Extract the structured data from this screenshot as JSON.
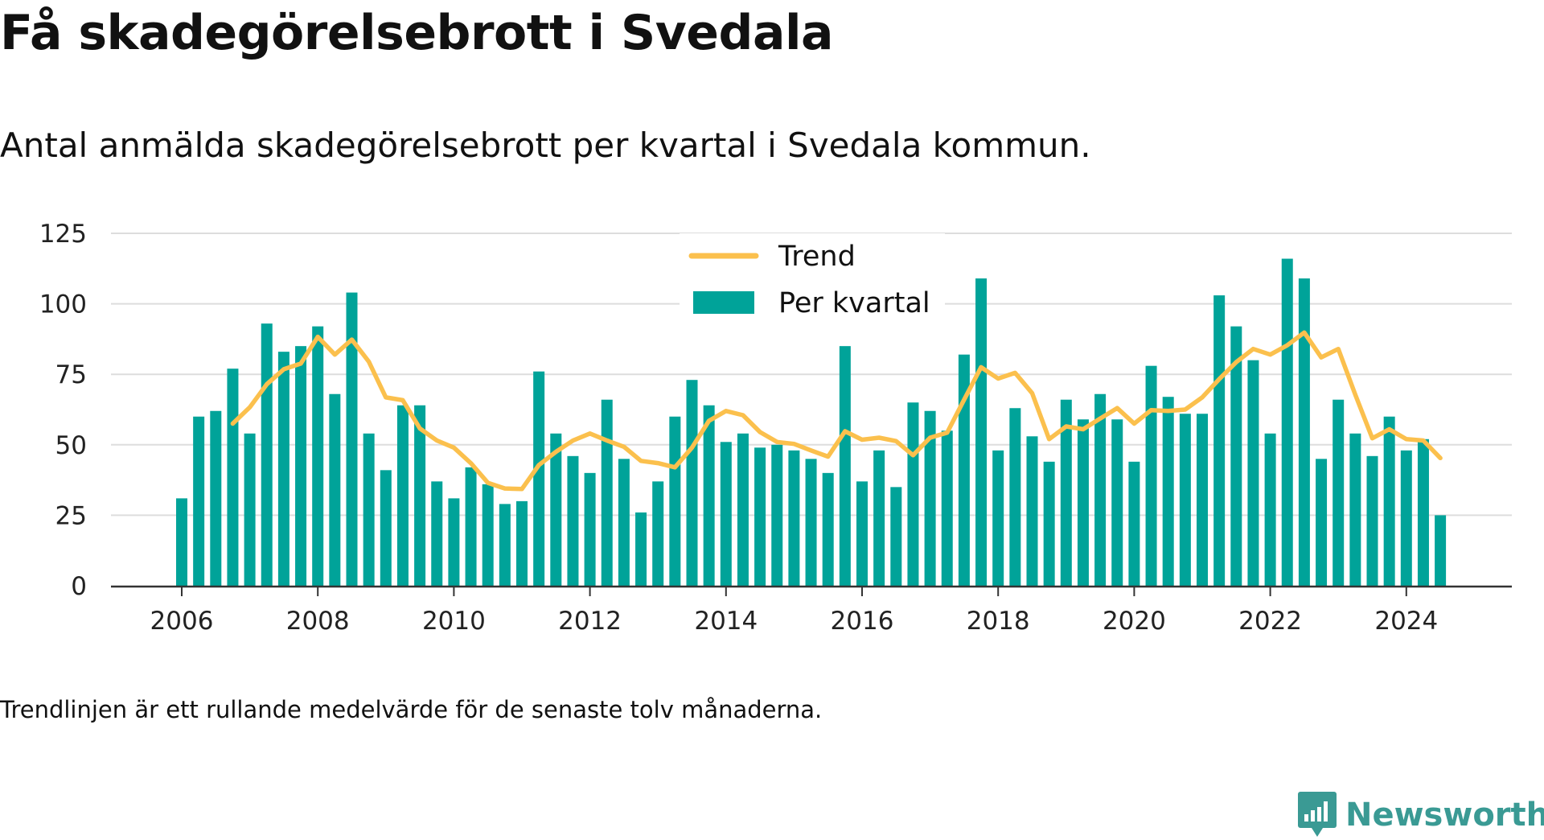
{
  "title": "Få skadegörelsebrott i Svedala",
  "subtitle": "Antal anmälda skadegörelsebrott per kvartal i Svedala kommun.",
  "footnote": "Trendlinjen är ett rullande medelvärde för de senaste tolv månaderna.",
  "brand": {
    "name": "Newsworthy",
    "icon": "newsworthy-logo-icon"
  },
  "colors": {
    "bars": "#00a399",
    "trend": "#fbc04d",
    "grid": "#dddddd",
    "axis": "#333333",
    "brand": "#3a9a94"
  },
  "chart_data": {
    "type": "bar",
    "title": "Få skadegörelsebrott i Svedala",
    "ylim": [
      0,
      125
    ],
    "yticks": [
      0,
      25,
      50,
      75,
      100,
      125
    ],
    "xticks": [
      "2006",
      "2008",
      "2010",
      "2012",
      "2014",
      "2016",
      "2018",
      "2020",
      "2022",
      "2024"
    ],
    "x_start": "2006 Q1",
    "grid": true,
    "legend": {
      "placement": "top-center",
      "entries": [
        "Trend",
        "Per kvartal"
      ]
    },
    "series": [
      {
        "name": "Per kvartal",
        "type": "bar",
        "values": [
          31,
          60,
          62,
          77,
          54,
          93,
          83,
          85,
          92,
          68,
          104,
          54,
          41,
          64,
          64,
          37,
          31,
          42,
          36,
          29,
          30,
          76,
          54,
          46,
          40,
          66,
          45,
          26,
          37,
          60,
          73,
          64,
          51,
          54,
          49,
          50,
          48,
          45,
          40,
          85,
          37,
          48,
          35,
          65,
          62,
          55,
          82,
          109,
          48,
          63,
          53,
          44,
          66,
          59,
          68,
          59,
          44,
          78,
          67,
          61,
          61,
          103,
          92,
          80,
          54,
          116,
          109,
          45,
          66,
          54,
          46,
          60,
          48,
          52,
          25
        ]
      },
      {
        "name": "Trend",
        "type": "line",
        "values": [
          null,
          null,
          null,
          57.5,
          63.3,
          71.5,
          76.8,
          78.8,
          88.3,
          82,
          87.3,
          79.5,
          66.8,
          65.8,
          55.8,
          51.5,
          49,
          43.5,
          36.5,
          34.5,
          34.3,
          42.8,
          47.5,
          51.5,
          54,
          51.5,
          49.3,
          44.3,
          43.5,
          42,
          49,
          58.5,
          62,
          60.5,
          54.5,
          51,
          50.3,
          48,
          45.8,
          54.8,
          51.8,
          52.5,
          51.3,
          46.3,
          52.5,
          54.3,
          66,
          77.5,
          73.5,
          75.5,
          68.3,
          52,
          56.5,
          55.5,
          59.3,
          63,
          57.5,
          62.3,
          62,
          62.5,
          66.8,
          73.3,
          79.3,
          84,
          82,
          85.3,
          89.8,
          81,
          84,
          67.8,
          52.3,
          55.5,
          52,
          51.5,
          45.3
        ]
      }
    ]
  }
}
